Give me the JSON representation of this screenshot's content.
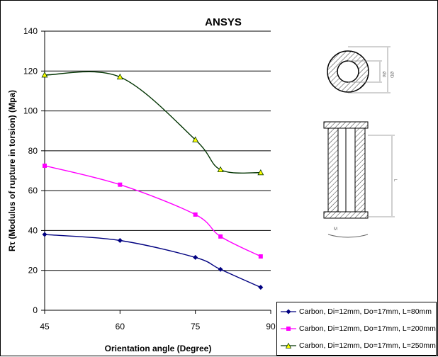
{
  "chart_data": {
    "type": "line",
    "title": "ANSYS",
    "xlabel": "Orientation angle (Degree)",
    "ylabel": "Rτ (Modulus of rupture in torsion) (Mpa)",
    "xlim": [
      45,
      90
    ],
    "ylim": [
      0,
      140
    ],
    "xticks": [
      "45",
      "60",
      "75",
      "90"
    ],
    "yticks": [
      "0",
      "20",
      "40",
      "60",
      "80",
      "100",
      "120",
      "140"
    ],
    "grid": "horizontal",
    "legend_position": "bottom-right",
    "series": [
      {
        "name": "Carbon, Di=12mm, Do=17mm, L=80mm",
        "color": "#000080",
        "marker": "diamond",
        "x": [
          45,
          60,
          75,
          80,
          88
        ],
        "y": [
          38,
          35,
          26.5,
          20.5,
          11.5
        ]
      },
      {
        "name": "Carbon, Di=12mm, Do=17mm, L=200mm",
        "color": "#ff00ff",
        "marker": "square",
        "x": [
          45,
          60,
          75,
          80,
          88
        ],
        "y": [
          72.5,
          63,
          48,
          37,
          27
        ]
      },
      {
        "name": "Carbon, Di=12mm, Do=17mm, L=250mm",
        "color": "#003300",
        "marker": "triangle",
        "x": [
          45,
          60,
          75,
          80,
          88
        ],
        "y": [
          118,
          117,
          85.5,
          70.5,
          69
        ]
      }
    ]
  },
  "diagram": {
    "dim_labels": [
      "ØD",
      "Ød",
      "L",
      "M"
    ]
  }
}
